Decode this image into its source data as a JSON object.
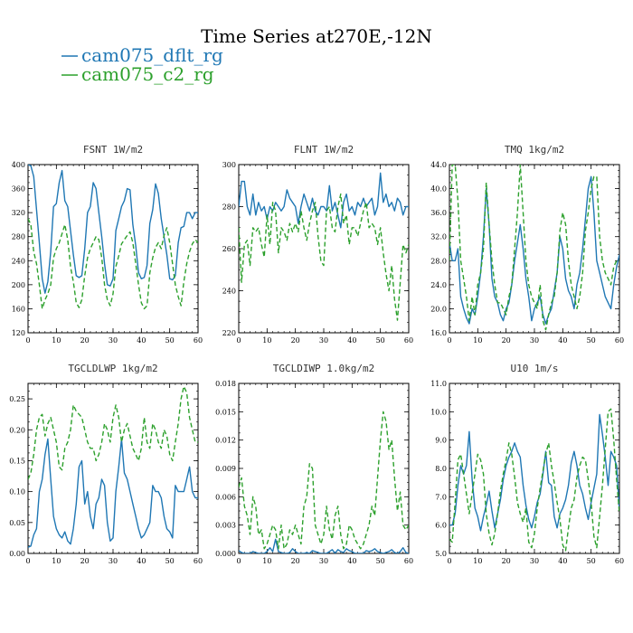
{
  "figure": {
    "title": "Time Series at270E,-12N"
  },
  "colors": {
    "series1": "#1f77b4",
    "series2": "#2ca02c"
  },
  "legend": [
    {
      "name": "cam075_dflt_rg",
      "color": "#1f77b4",
      "dash": "solid"
    },
    {
      "name": "cam075_c2_rg",
      "color": "#2ca02c",
      "dash": "dashed"
    }
  ],
  "chart_data": [
    {
      "type": "line",
      "title": "FSNT   1W/m2",
      "xlim": [
        0,
        60
      ],
      "ylim": [
        120,
        400
      ],
      "xticks": [
        0,
        10,
        20,
        30,
        40,
        50,
        60
      ],
      "yticks": [
        120,
        160,
        200,
        240,
        280,
        320,
        360,
        400
      ],
      "yfmt": 0,
      "series": [
        {
          "name": "cam075_dflt_rg",
          "values": [
            400,
            398,
            380,
            325,
            270,
            210,
            186,
            205,
            255,
            330,
            335,
            370,
            390,
            340,
            330,
            290,
            250,
            215,
            212,
            215,
            260,
            320,
            330,
            370,
            360,
            320,
            280,
            235,
            200,
            198,
            210,
            290,
            310,
            330,
            340,
            360,
            358,
            300,
            265,
            220,
            210,
            212,
            232,
            302,
            325,
            368,
            352,
            310,
            280,
            250,
            210,
            208,
            215,
            270,
            295,
            297,
            320,
            320,
            310,
            320,
            320
          ]
        },
        {
          "name": "cam075_c2_rg",
          "values": [
            310,
            300,
            255,
            235,
            200,
            160,
            175,
            185,
            200,
            245,
            260,
            270,
            285,
            300,
            275,
            230,
            205,
            170,
            162,
            175,
            215,
            245,
            260,
            270,
            280,
            275,
            245,
            200,
            175,
            165,
            185,
            230,
            248,
            268,
            275,
            282,
            288,
            270,
            235,
            200,
            170,
            160,
            165,
            220,
            245,
            262,
            270,
            260,
            282,
            295,
            270,
            235,
            200,
            180,
            165,
            205,
            235,
            255,
            268,
            275,
            270
          ]
        }
      ]
    },
    {
      "type": "line",
      "title": "FLNT   1W/m2",
      "xlim": [
        0,
        60
      ],
      "ylim": [
        220,
        300
      ],
      "xticks": [
        0,
        10,
        20,
        30,
        40,
        50,
        60
      ],
      "yticks": [
        220,
        240,
        260,
        280,
        300
      ],
      "yfmt": 0,
      "series": [
        {
          "name": "cam075_dflt_rg",
          "values": [
            280,
            292,
            292,
            280,
            276,
            286,
            276,
            282,
            278,
            280,
            274,
            280,
            278,
            282,
            280,
            278,
            280,
            288,
            284,
            282,
            280,
            272,
            280,
            286,
            282,
            278,
            284,
            278,
            276,
            280,
            280,
            278,
            290,
            278,
            282,
            276,
            270,
            282,
            286,
            278,
            280,
            276,
            282,
            280,
            284,
            280,
            282,
            284,
            276,
            280,
            296,
            282,
            286,
            280,
            282,
            278,
            284,
            282,
            276,
            280,
            280
          ]
        },
        {
          "name": "cam075_c2_rg",
          "values": [
            270,
            244,
            262,
            264,
            252,
            270,
            268,
            270,
            262,
            256,
            276,
            262,
            282,
            278,
            258,
            270,
            268,
            264,
            272,
            268,
            272,
            268,
            278,
            270,
            264,
            272,
            278,
            282,
            266,
            254,
            252,
            278,
            280,
            270,
            268,
            280,
            286,
            272,
            276,
            262,
            270,
            270,
            266,
            272,
            278,
            282,
            270,
            272,
            270,
            262,
            270,
            258,
            248,
            240,
            252,
            236,
            226,
            244,
            262,
            258,
            262
          ]
        }
      ]
    },
    {
      "type": "line",
      "title": "TMQ   1kg/m2",
      "xlim": [
        0,
        60
      ],
      "ylim": [
        16,
        44
      ],
      "xticks": [
        0,
        10,
        20,
        30,
        40,
        50,
        60
      ],
      "yticks": [
        16,
        20,
        24,
        28,
        32,
        36,
        40,
        44
      ],
      "yfmt": 1,
      "series": [
        {
          "name": "cam075_dflt_rg",
          "values": [
            31,
            28,
            28,
            30,
            22,
            20,
            18.5,
            17.5,
            20,
            19,
            22,
            26,
            32,
            40,
            34,
            25,
            22,
            21,
            19,
            18,
            20,
            21,
            24,
            28,
            31,
            34,
            30,
            25,
            22,
            18,
            20,
            21,
            22,
            19,
            17.5,
            19,
            20,
            23,
            26,
            32,
            30,
            25,
            23,
            22,
            20,
            24,
            26,
            30,
            35,
            40,
            42,
            36,
            28,
            26,
            24,
            22,
            21,
            20,
            24,
            27,
            29
          ]
        },
        {
          "name": "cam075_c2_rg",
          "values": [
            28,
            44,
            44,
            38,
            28,
            25,
            22,
            18,
            22,
            19,
            24,
            26,
            30,
            41,
            34,
            28,
            24,
            21,
            21,
            20,
            19,
            22,
            24,
            30,
            36,
            44,
            36,
            28,
            24,
            22,
            21,
            20,
            24,
            18,
            16.5,
            19,
            21,
            22,
            26,
            33,
            36,
            34,
            28,
            24,
            22,
            20,
            22,
            26,
            33,
            36,
            40,
            42,
            42,
            32,
            28,
            26,
            25,
            24,
            27,
            28,
            28
          ]
        }
      ]
    },
    {
      "type": "line",
      "title": "TGCLDLWP   1kg/m2",
      "xlim": [
        0,
        60
      ],
      "ylim": [
        0,
        0.275
      ],
      "xticks": [
        0,
        10,
        20,
        30,
        40,
        50,
        60
      ],
      "yticks": [
        0,
        0.05,
        0.1,
        0.15,
        0.2,
        0.25
      ],
      "yfmt": 2,
      "series": [
        {
          "name": "cam075_dflt_rg",
          "values": [
            0.01,
            0.012,
            0.03,
            0.04,
            0.1,
            0.12,
            0.16,
            0.185,
            0.12,
            0.06,
            0.04,
            0.03,
            0.025,
            0.035,
            0.02,
            0.015,
            0.04,
            0.08,
            0.14,
            0.15,
            0.08,
            0.1,
            0.06,
            0.04,
            0.08,
            0.09,
            0.12,
            0.11,
            0.05,
            0.02,
            0.025,
            0.1,
            0.14,
            0.185,
            0.13,
            0.12,
            0.1,
            0.08,
            0.06,
            0.04,
            0.025,
            0.03,
            0.04,
            0.05,
            0.11,
            0.1,
            0.1,
            0.09,
            0.06,
            0.04,
            0.035,
            0.025,
            0.11,
            0.1,
            0.1,
            0.1,
            0.12,
            0.14,
            0.1,
            0.09,
            0.09
          ]
        },
        {
          "name": "cam075_c2_rg",
          "values": [
            0.12,
            0.13,
            0.16,
            0.2,
            0.22,
            0.225,
            0.19,
            0.21,
            0.22,
            0.2,
            0.18,
            0.14,
            0.135,
            0.17,
            0.18,
            0.2,
            0.24,
            0.23,
            0.225,
            0.22,
            0.2,
            0.18,
            0.17,
            0.17,
            0.15,
            0.16,
            0.18,
            0.21,
            0.2,
            0.18,
            0.22,
            0.24,
            0.22,
            0.18,
            0.2,
            0.21,
            0.19,
            0.17,
            0.16,
            0.15,
            0.17,
            0.22,
            0.18,
            0.17,
            0.21,
            0.2,
            0.18,
            0.17,
            0.2,
            0.19,
            0.16,
            0.15,
            0.18,
            0.21,
            0.25,
            0.27,
            0.26,
            0.22,
            0.2,
            0.18,
            0.18
          ]
        }
      ]
    },
    {
      "type": "line",
      "title": "TGCLDIWP   1.0kg/m2",
      "xlim": [
        0,
        60
      ],
      "ylim": [
        0,
        0.018
      ],
      "xticks": [
        0,
        10,
        20,
        30,
        40,
        50,
        60
      ],
      "yticks": [
        0,
        0.003,
        0.006,
        0.009,
        0.012,
        0.015,
        0.018
      ],
      "yfmt": 3,
      "series": [
        {
          "name": "cam075_dflt_rg",
          "values": [
            0.0003,
            0.0001,
            0,
            0,
            0,
            0.0002,
            0.0001,
            0,
            0,
            0,
            0.0002,
            0.0006,
            0.0002,
            0.0015,
            0.0002,
            0.0001,
            0,
            0,
            0.0001,
            0.0005,
            0.0002,
            0,
            0,
            0,
            0.0001,
            0,
            0.0003,
            0.0002,
            0.0001,
            0,
            0,
            0,
            0.0002,
            0.0004,
            0,
            0.0004,
            0.0002,
            0.0001,
            0.0005,
            0.0003,
            0.0002,
            0,
            0,
            0,
            0,
            0.0003,
            0.0002,
            0.0003,
            0.0005,
            0.0002,
            0.0001,
            0,
            0.0001,
            0.0002,
            0.0004,
            0.0001,
            0,
            0.0002,
            0.0006,
            0.0001,
            0
          ]
        },
        {
          "name": "cam075_c2_rg",
          "values": [
            0.007,
            0.008,
            0.005,
            0.004,
            0.002,
            0.006,
            0.005,
            0.002,
            0.0025,
            0.0005,
            0.001,
            0.002,
            0.003,
            0.0025,
            0.0005,
            0.003,
            0.0005,
            0.001,
            0.0025,
            0.002,
            0.003,
            0.002,
            0.001,
            0.005,
            0.006,
            0.0095,
            0.009,
            0.003,
            0.002,
            0.001,
            0.002,
            0.005,
            0.0025,
            0.0015,
            0.004,
            0.005,
            0.002,
            0.0005,
            0.001,
            0.003,
            0.0025,
            0.0015,
            0.001,
            0.0005,
            0.001,
            0.002,
            0.003,
            0.005,
            0.004,
            0.008,
            0.012,
            0.015,
            0.014,
            0.011,
            0.012,
            0.008,
            0.0045,
            0.0065,
            0.003,
            0.0025,
            0.003
          ]
        }
      ]
    },
    {
      "type": "line",
      "title": "U10   1m/s",
      "xlim": [
        0,
        60
      ],
      "ylim": [
        5,
        11
      ],
      "xticks": [
        0,
        10,
        20,
        30,
        40,
        50,
        60
      ],
      "yticks": [
        5,
        6,
        7,
        8,
        9,
        10,
        11
      ],
      "yfmt": 1,
      "series": [
        {
          "name": "cam075_dflt_rg",
          "values": [
            6,
            6,
            6.4,
            7.4,
            8.1,
            7.8,
            8.1,
            9.3,
            7.6,
            6.6,
            6.3,
            5.8,
            6.3,
            6.7,
            7.2,
            6.5,
            5.9,
            6.4,
            6.9,
            7.6,
            8.1,
            8.4,
            8.6,
            8.9,
            8.6,
            8.4,
            7.4,
            6.7,
            6.2,
            5.9,
            6.3,
            6.8,
            7.1,
            7.8,
            8.6,
            7.5,
            7.4,
            6.3,
            5.9,
            6.4,
            6.6,
            6.9,
            7.4,
            8.2,
            8.6,
            8.1,
            7.4,
            7.1,
            6.6,
            6.2,
            6.8,
            7.3,
            7.8,
            9.9,
            9.2,
            8.4,
            7.4,
            8.6,
            8.4,
            8.1,
            6.5
          ]
        },
        {
          "name": "cam075_c2_rg",
          "values": [
            5.5,
            5.4,
            6.8,
            8.3,
            8.5,
            7.8,
            7.1,
            6.4,
            7.1,
            7.8,
            8.5,
            8.3,
            7.8,
            6.4,
            5.7,
            5.3,
            5.7,
            6.4,
            7.2,
            7.8,
            8.3,
            8.9,
            8.5,
            7.7,
            6.8,
            6.4,
            6.1,
            6.6,
            5.4,
            5.2,
            5.7,
            6.6,
            7.3,
            7.9,
            8.5,
            8.9,
            8.1,
            7.5,
            6.8,
            6.2,
            5.3,
            5.1,
            5.9,
            6.6,
            6.9,
            7.7,
            8.1,
            8.4,
            8.3,
            7.6,
            6.8,
            5.6,
            5.2,
            6.3,
            7.4,
            8.7,
            10,
            10.1,
            9,
            7.6,
            6.4
          ]
        }
      ]
    }
  ]
}
